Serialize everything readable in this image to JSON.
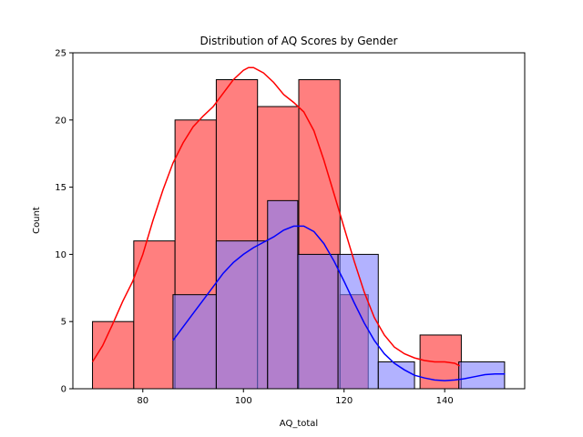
{
  "chart_data": {
    "type": "histogram",
    "title": "Distribution of AQ Scores by Gender",
    "xlabel": "AQ_total",
    "ylabel": "Count",
    "xlim": [
      66.1,
      155.9
    ],
    "ylim": [
      0,
      25
    ],
    "xticks": [
      80,
      100,
      120,
      140
    ],
    "yticks": [
      0,
      5,
      10,
      15,
      20,
      25
    ],
    "grid": false,
    "legend": "none",
    "series": [
      {
        "color": "#ff0000",
        "fill": "#ff7f7f",
        "bins": [
          {
            "x0": 70.0,
            "x1": 78.2,
            "count": 5
          },
          {
            "x0": 78.2,
            "x1": 86.4,
            "count": 11
          },
          {
            "x0": 86.4,
            "x1": 94.6,
            "count": 20
          },
          {
            "x0": 94.6,
            "x1": 102.8,
            "count": 23
          },
          {
            "x0": 102.8,
            "x1": 111.0,
            "count": 21
          },
          {
            "x0": 111.0,
            "x1": 119.2,
            "count": 23
          },
          {
            "x0": 119.2,
            "x1": 124.8,
            "count": 7
          },
          {
            "x0": 135.1,
            "x1": 143.3,
            "count": 4
          }
        ],
        "kde": [
          [
            70,
            2.0
          ],
          [
            72,
            3.2
          ],
          [
            74,
            4.8
          ],
          [
            76,
            6.5
          ],
          [
            78,
            8.0
          ],
          [
            80,
            10.0
          ],
          [
            82,
            12.5
          ],
          [
            84,
            14.8
          ],
          [
            86,
            16.8
          ],
          [
            88,
            18.3
          ],
          [
            90,
            19.5
          ],
          [
            92,
            20.3
          ],
          [
            94,
            21.0
          ],
          [
            96,
            22.0
          ],
          [
            98,
            23.0
          ],
          [
            100,
            23.7
          ],
          [
            101,
            23.9
          ],
          [
            102,
            23.9
          ],
          [
            104,
            23.5
          ],
          [
            106,
            22.8
          ],
          [
            108,
            21.9
          ],
          [
            110,
            21.3
          ],
          [
            112,
            20.6
          ],
          [
            114,
            19.2
          ],
          [
            116,
            17.0
          ],
          [
            118,
            14.5
          ],
          [
            120,
            12.0
          ],
          [
            122,
            9.5
          ],
          [
            124,
            7.2
          ],
          [
            126,
            5.3
          ],
          [
            128,
            4.0
          ],
          [
            130,
            3.1
          ],
          [
            132,
            2.6
          ],
          [
            134,
            2.3
          ],
          [
            136,
            2.1
          ],
          [
            138,
            2.0
          ],
          [
            140,
            2.0
          ],
          [
            142,
            1.9
          ],
          [
            143,
            1.7
          ]
        ]
      },
      {
        "color": "#0000ff",
        "fill": "#7f7fff",
        "bins": [
          {
            "x0": 86.0,
            "x1": 94.6,
            "count": 7
          },
          {
            "x0": 94.6,
            "x1": 104.8,
            "count": 11
          },
          {
            "x0": 104.8,
            "x1": 110.8,
            "count": 14
          },
          {
            "x0": 110.8,
            "x1": 118.8,
            "count": 10
          },
          {
            "x0": 118.8,
            "x1": 126.8,
            "count": 10
          },
          {
            "x0": 126.8,
            "x1": 134.0,
            "count": 2
          },
          {
            "x0": 142.8,
            "x1": 151.9,
            "count": 2
          }
        ],
        "kde": [
          [
            86,
            3.6
          ],
          [
            88,
            4.6
          ],
          [
            90,
            5.6
          ],
          [
            92,
            6.6
          ],
          [
            94,
            7.6
          ],
          [
            96,
            8.6
          ],
          [
            98,
            9.4
          ],
          [
            100,
            10.0
          ],
          [
            102,
            10.5
          ],
          [
            104,
            10.9
          ],
          [
            106,
            11.3
          ],
          [
            108,
            11.8
          ],
          [
            110,
            12.1
          ],
          [
            112,
            12.1
          ],
          [
            114,
            11.7
          ],
          [
            116,
            10.8
          ],
          [
            118,
            9.5
          ],
          [
            120,
            8.0
          ],
          [
            122,
            6.4
          ],
          [
            124,
            4.9
          ],
          [
            126,
            3.6
          ],
          [
            128,
            2.6
          ],
          [
            130,
            1.9
          ],
          [
            132,
            1.4
          ],
          [
            134,
            1.0
          ],
          [
            136,
            0.8
          ],
          [
            138,
            0.65
          ],
          [
            140,
            0.6
          ],
          [
            142,
            0.65
          ],
          [
            144,
            0.75
          ],
          [
            146,
            0.9
          ],
          [
            148,
            1.05
          ],
          [
            150,
            1.1
          ],
          [
            152,
            1.1
          ]
        ]
      }
    ]
  }
}
